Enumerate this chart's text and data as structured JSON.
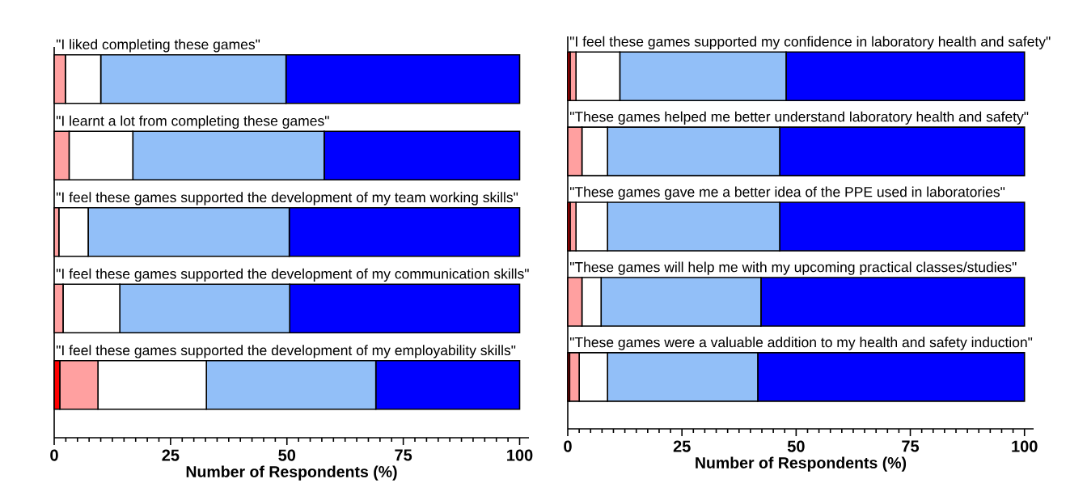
{
  "chart_data": [
    {
      "type": "bar",
      "orientation": "horizontal",
      "stacked": true,
      "categories": [
        "\"I liked completing these games\"",
        "\"I learnt a lot from completing these games\"",
        "\"I feel these games supported the development of my team working skills\"",
        "\"I feel these games supported the development of my communication skills\"",
        "\"I feel these games supported the development of my employability skills\""
      ],
      "series": [
        {
          "color": "#ff0000",
          "values": [
            0,
            0,
            0,
            0,
            1.2
          ]
        },
        {
          "color": "#ffa0a0",
          "values": [
            2.4,
            3.2,
            1.0,
            1.9,
            8.2
          ]
        },
        {
          "color": "#ffffff",
          "values": [
            7.6,
            13.7,
            6.3,
            12.2,
            23.3
          ]
        },
        {
          "color": "#92bff8",
          "values": [
            39.8,
            41.1,
            43.2,
            36.5,
            36.4
          ]
        },
        {
          "color": "#0000ff",
          "values": [
            50.2,
            42.0,
            49.5,
            49.4,
            30.9
          ]
        }
      ],
      "xlim": [
        0,
        102
      ],
      "xticks": [
        0,
        {
          "value": 2.5,
          "label": null
        },
        {
          "value": 5,
          "label": null
        },
        {
          "value": 7.5,
          "label": null
        },
        {
          "value": 10,
          "label": null
        },
        {
          "value": 12.5,
          "label": null
        },
        {
          "value": 15,
          "label": null
        },
        {
          "value": 17.5,
          "label": null
        },
        {
          "value": 20,
          "label": null
        },
        {
          "value": 22.5,
          "label": null
        },
        25,
        {
          "value": 27.5,
          "label": null
        },
        {
          "value": 30,
          "label": null
        },
        {
          "value": 32.5,
          "label": null
        },
        {
          "value": 35,
          "label": null
        },
        {
          "value": 37.5,
          "label": null
        },
        {
          "value": 40,
          "label": null
        },
        {
          "value": 42.5,
          "label": null
        },
        {
          "value": 45,
          "label": null
        },
        {
          "value": 47.5,
          "label": null
        },
        50,
        {
          "value": 52.5,
          "label": null
        },
        {
          "value": 55,
          "label": null
        },
        {
          "value": 57.5,
          "label": null
        },
        {
          "value": 60,
          "label": null
        },
        {
          "value": 62.5,
          "label": null
        },
        {
          "value": 65,
          "label": null
        },
        {
          "value": 67.5,
          "label": null
        },
        {
          "value": 70,
          "label": null
        },
        {
          "value": 72.5,
          "label": null
        },
        75,
        {
          "value": 77.5,
          "label": null
        },
        {
          "value": 80,
          "label": null
        },
        {
          "value": 82.5,
          "label": null
        },
        {
          "value": 85,
          "label": null
        },
        {
          "value": 87.5,
          "label": null
        },
        {
          "value": 90,
          "label": null
        },
        {
          "value": 92.5,
          "label": null
        },
        {
          "value": 95,
          "label": null
        },
        {
          "value": 97.5,
          "label": null
        },
        100
      ],
      "xlabel": "Number of Respondents (%)"
    },
    {
      "type": "bar",
      "orientation": "horizontal",
      "stacked": true,
      "categories": [
        "\"I feel these games supported my confidence in laboratory health and safety\"",
        "\"These games helped me better understand laboratory health and safety\"",
        "\"These games gave me a better idea of the PPE used in laboratories\"",
        "\"These games will help me with my upcoming practical classes/studies\"",
        "\"These games were a valuable addition to my health and safety induction\""
      ],
      "series": [
        {
          "color": "#ff0000",
          "values": [
            0.5,
            0,
            0.5,
            0,
            0.4
          ]
        },
        {
          "color": "#ffa0a0",
          "values": [
            1.3,
            3.1,
            1.3,
            3.1,
            2.1
          ]
        },
        {
          "color": "#ffffff",
          "values": [
            9.6,
            5.6,
            6.9,
            4.2,
            6.2
          ]
        },
        {
          "color": "#92bff8",
          "values": [
            36.4,
            37.7,
            37.7,
            35.0,
            32.9
          ]
        },
        {
          "color": "#0000ff",
          "values": [
            52.2,
            53.6,
            53.6,
            57.7,
            58.4
          ]
        }
      ],
      "xlim": [
        0,
        102
      ],
      "xticks": [
        0,
        {
          "value": 2.5,
          "label": null
        },
        {
          "value": 5,
          "label": null
        },
        {
          "value": 7.5,
          "label": null
        },
        {
          "value": 10,
          "label": null
        },
        {
          "value": 12.5,
          "label": null
        },
        {
          "value": 15,
          "label": null
        },
        {
          "value": 17.5,
          "label": null
        },
        {
          "value": 20,
          "label": null
        },
        {
          "value": 22.5,
          "label": null
        },
        25,
        {
          "value": 27.5,
          "label": null
        },
        {
          "value": 30,
          "label": null
        },
        {
          "value": 32.5,
          "label": null
        },
        {
          "value": 35,
          "label": null
        },
        {
          "value": 37.5,
          "label": null
        },
        {
          "value": 40,
          "label": null
        },
        {
          "value": 42.5,
          "label": null
        },
        {
          "value": 45,
          "label": null
        },
        {
          "value": 47.5,
          "label": null
        },
        50,
        {
          "value": 52.5,
          "label": null
        },
        {
          "value": 55,
          "label": null
        },
        {
          "value": 57.5,
          "label": null
        },
        {
          "value": 60,
          "label": null
        },
        {
          "value": 62.5,
          "label": null
        },
        {
          "value": 65,
          "label": null
        },
        {
          "value": 67.5,
          "label": null
        },
        {
          "value": 70,
          "label": null
        },
        {
          "value": 72.5,
          "label": null
        },
        75,
        {
          "value": 77.5,
          "label": null
        },
        {
          "value": 80,
          "label": null
        },
        {
          "value": 82.5,
          "label": null
        },
        {
          "value": 85,
          "label": null
        },
        {
          "value": 87.5,
          "label": null
        },
        {
          "value": 90,
          "label": null
        },
        {
          "value": 92.5,
          "label": null
        },
        {
          "value": 95,
          "label": null
        },
        {
          "value": 97.5,
          "label": null
        },
        100
      ],
      "xlabel": "Number of Respondents (%)"
    }
  ]
}
